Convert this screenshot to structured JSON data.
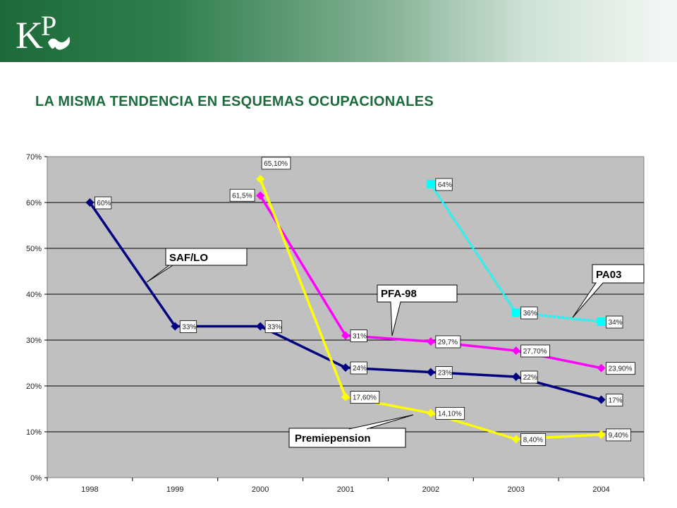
{
  "header": {
    "logo_text": "KP",
    "title": "LA MISMA TENDENCIA EN ESQUEMAS OCUPACIONALES"
  },
  "colors": {
    "banner_dark": "#1e6a3a",
    "title": "#1b6b3c",
    "plot_bg": "#c0c0c0"
  },
  "chart_data": {
    "type": "line",
    "categories": [
      "1998",
      "1999",
      "2000",
      "2001",
      "2002",
      "2003",
      "2004"
    ],
    "ylim": [
      0,
      70
    ],
    "yticks": [
      "0%",
      "10%",
      "20%",
      "30%",
      "40%",
      "50%",
      "60%",
      "70%"
    ],
    "grid": true,
    "xlabel": "",
    "ylabel": "",
    "series": [
      {
        "name": "SAF/LO",
        "color": "#000080",
        "marker": "diamond",
        "values": [
          60,
          33,
          33,
          24,
          23,
          22,
          17
        ],
        "labels": [
          "60%",
          "33%",
          "33%",
          "24%",
          "23%",
          "22%",
          "17%"
        ]
      },
      {
        "name": "PFA-98",
        "color": "#ff00ff",
        "marker": "diamond",
        "values": [
          null,
          null,
          61.5,
          31,
          29.7,
          27.7,
          23.9
        ],
        "labels": [
          "",
          "",
          "61,5%",
          "31%",
          "29,7%",
          "27,70%",
          "23,90%"
        ]
      },
      {
        "name": "Premiepension",
        "color": "#ffff00",
        "marker": "diamond",
        "values": [
          null,
          null,
          65.1,
          17.6,
          14.1,
          8.4,
          9.4
        ],
        "labels": [
          "",
          "",
          "65,10%",
          "17,60%",
          "14,10%",
          "8,40%",
          "9,40%"
        ]
      },
      {
        "name": "PA03",
        "color": "#00ffff",
        "marker": "square",
        "values": [
          null,
          null,
          null,
          null,
          64,
          36,
          34
        ],
        "labels": [
          "",
          "",
          "",
          "",
          "64%",
          "36%",
          "34%"
        ]
      }
    ]
  }
}
